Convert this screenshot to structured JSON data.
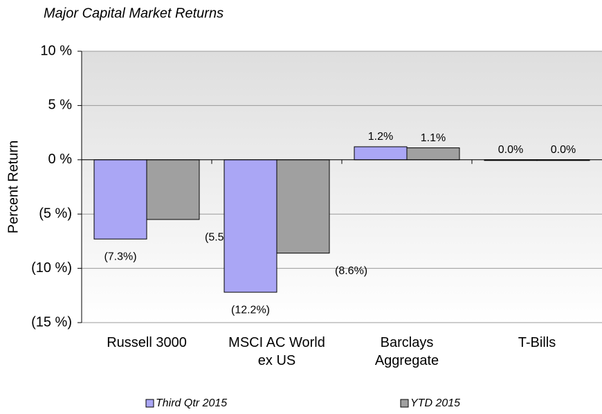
{
  "chart_data": {
    "type": "bar",
    "title": "Major Capital Market Returns",
    "y_label": "Percent Return",
    "categories": [
      "Russell 3000",
      "MSCI AC World\nex US",
      "Barclays\nAggregate",
      "T-Bills"
    ],
    "series": [
      {
        "name": "Third Qtr 2015",
        "color": "#aaa6f5",
        "values": [
          -7.3,
          -12.2,
          1.2,
          0.0
        ],
        "value_labels": [
          "(7.3%)",
          "(12.2%)",
          "1.2%",
          "0.0%"
        ]
      },
      {
        "name": "YTD 2015",
        "color": "#a0a0a0",
        "values": [
          -5.5,
          -8.6,
          1.1,
          0.0
        ],
        "value_labels": [
          "(5.5%)",
          "(8.6%)",
          "1.1%",
          "0.0%"
        ]
      }
    ],
    "ylim": [
      -15,
      10
    ],
    "yticks": [
      {
        "value": -15,
        "label": "(15 %)"
      },
      {
        "value": -10,
        "label": "(10 %)"
      },
      {
        "value": -5,
        "label": "(5 %)"
      },
      {
        "value": 0,
        "label": "0 %"
      },
      {
        "value": 5,
        "label": "5 %"
      },
      {
        "value": 10,
        "label": "10 %"
      }
    ],
    "grid": true,
    "negative_color": "#e00000"
  }
}
